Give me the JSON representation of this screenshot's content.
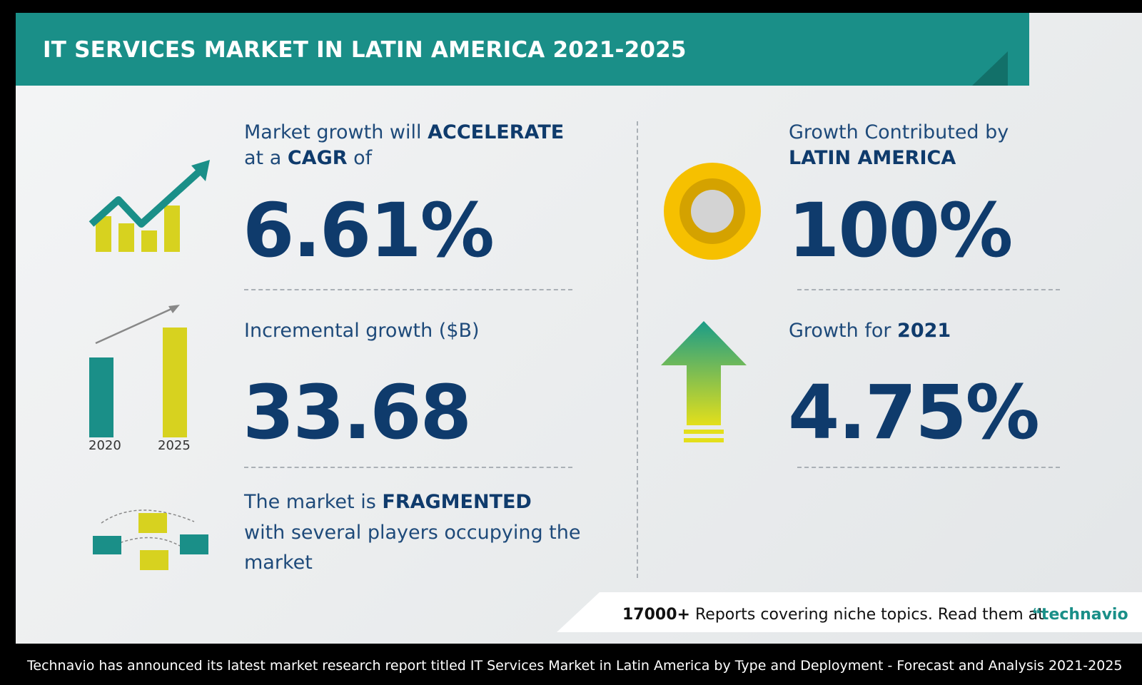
{
  "header": {
    "title": "IT SERVICES MARKET IN LATIN AMERICA 2021-2025"
  },
  "cagr": {
    "line1_prefix": "Market growth will",
    "line1_bold": "ACCELERATE",
    "line2_prefix": "at a",
    "line2_bold": "CAGR",
    "line2_suffix": "of",
    "value": "6.61%"
  },
  "incremental": {
    "label": "Incremental growth ($B)",
    "value": "33.68",
    "bar_years": [
      "2020",
      "2025"
    ]
  },
  "fragmented": {
    "line1_prefix": "The market is",
    "line1_bold": "FRAGMENTED",
    "line2": "with several players occupying the",
    "line3": "market"
  },
  "contribution": {
    "line1": "Growth Contributed by",
    "line2": "LATIN AMERICA",
    "value": "100%"
  },
  "growth_year": {
    "label": "Growth for",
    "year": "2021",
    "value": "4.75%"
  },
  "footer": {
    "count": "17000+",
    "text": "Reports covering niche topics. Read them at",
    "brand": "technavio"
  },
  "caption": "Technavio has announced its latest market research report titled IT Services Market in Latin America by Type and Deployment - Forecast and Analysis 2021-2025",
  "colors": {
    "teal": "#1a8f88",
    "navy": "#0f3b6c",
    "yellow": "#d7d21f",
    "gold": "#f6c000"
  }
}
